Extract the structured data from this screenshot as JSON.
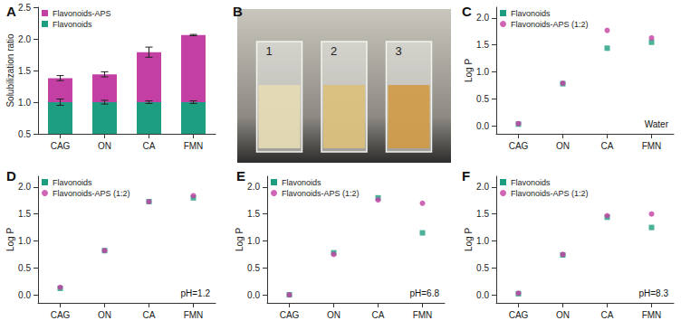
{
  "chart_data": [
    {
      "type": "bar",
      "title": "A",
      "ylabel": "Solubilization ratio",
      "categories": [
        "CAG",
        "ON",
        "CA",
        "FMN"
      ],
      "series": [
        {
          "name": "Flavonoids-APS",
          "color": "#c33fa3",
          "values": [
            1.38,
            1.44,
            1.79,
            2.06
          ],
          "errors": [
            0.04,
            0.04,
            0.08,
            0.01
          ]
        },
        {
          "name": "Flavonoids",
          "color": "#1e9e80",
          "values": [
            1.0,
            1.0,
            1.0,
            1.0
          ],
          "errors": [
            0.05,
            0.03,
            0.02,
            0.02
          ]
        }
      ],
      "ylim": [
        0.5,
        2.5
      ],
      "yticks": [
        0.5,
        {
          "value": 1,
          "label": "1.0"
        },
        1.5,
        {
          "value": 2,
          "label": "2.0"
        },
        2.5
      ],
      "legend": "upper left",
      "grid": false
    },
    {
      "type": "image",
      "title": "B",
      "labels": [
        "1",
        "2",
        "3"
      ]
    },
    {
      "type": "scatter",
      "title": "C",
      "ylabel": "Log P",
      "annotation": "Water",
      "categories": [
        "CAG",
        "ON",
        "CA",
        "FMN"
      ],
      "series": [
        {
          "name": "Flavonoids",
          "color": "#1e9e80",
          "marker": "square",
          "values": [
            0.03,
            0.78,
            1.44,
            1.55
          ]
        },
        {
          "name": "Flavonoids-APS (1:2)",
          "color": "#c33fa3",
          "marker": "circle",
          "values": [
            0.04,
            0.79,
            1.77,
            1.63
          ]
        }
      ],
      "ylim": [
        -0.15,
        2.2
      ],
      "yticks": [
        {
          "value": 0,
          "label": "0.0"
        },
        0.5,
        {
          "value": 1,
          "label": "1.0"
        },
        1.5,
        {
          "value": 2,
          "label": "2.0"
        }
      ],
      "legend": "upper left",
      "grid": false
    },
    {
      "type": "scatter",
      "title": "D",
      "ylabel": "Log P",
      "annotation": "pH=1.2",
      "categories": [
        "CAG",
        "ON",
        "CA",
        "FMN"
      ],
      "series": [
        {
          "name": "Flavonoids",
          "color": "#1e9e80",
          "marker": "square",
          "values": [
            0.12,
            0.82,
            1.73,
            1.8
          ]
        },
        {
          "name": "Flavonoids-APS (1:2)",
          "color": "#c33fa3",
          "marker": "circle",
          "values": [
            0.14,
            0.82,
            1.73,
            1.84
          ]
        }
      ],
      "ylim": [
        -0.15,
        2.2
      ],
      "yticks": [
        {
          "value": 0,
          "label": "0.0"
        },
        0.5,
        {
          "value": 1,
          "label": "1.0"
        },
        1.5,
        {
          "value": 2,
          "label": "2.0"
        }
      ],
      "legend": "upper left",
      "grid": false
    },
    {
      "type": "scatter",
      "title": "E",
      "ylabel": "Log P",
      "annotation": "pH=6.8",
      "categories": [
        "CAG",
        "ON",
        "CA",
        "FMN"
      ],
      "series": [
        {
          "name": "Flavonoids",
          "color": "#1e9e80",
          "marker": "square",
          "values": [
            0.0,
            0.78,
            1.8,
            1.15
          ]
        },
        {
          "name": "Flavonoids-APS (1:2)",
          "color": "#c33fa3",
          "marker": "circle",
          "values": [
            0.0,
            0.75,
            1.76,
            1.7
          ]
        }
      ],
      "ylim": [
        -0.15,
        2.2
      ],
      "yticks": [
        {
          "value": 0,
          "label": "0.0"
        },
        0.5,
        {
          "value": 1,
          "label": "1.0"
        },
        1.5,
        {
          "value": 2,
          "label": "2.0"
        }
      ],
      "legend": "upper left",
      "grid": false
    },
    {
      "type": "scatter",
      "title": "F",
      "ylabel": "Log P",
      "annotation": "pH=8.3",
      "categories": [
        "CAG",
        "ON",
        "CA",
        "FMN"
      ],
      "series": [
        {
          "name": "Flavonoids",
          "color": "#1e9e80",
          "marker": "square",
          "values": [
            0.02,
            0.74,
            1.44,
            1.25
          ]
        },
        {
          "name": "Flavonoids-APS (1:2)",
          "color": "#c33fa3",
          "marker": "circle",
          "values": [
            0.03,
            0.75,
            1.47,
            1.5
          ]
        }
      ],
      "ylim": [
        -0.15,
        2.2
      ],
      "yticks": [
        {
          "value": 0,
          "label": "0.0"
        },
        0.5,
        {
          "value": 1,
          "label": "1.0"
        },
        1.5,
        {
          "value": 2,
          "label": "2.0"
        }
      ],
      "legend": "upper left",
      "grid": false
    }
  ]
}
